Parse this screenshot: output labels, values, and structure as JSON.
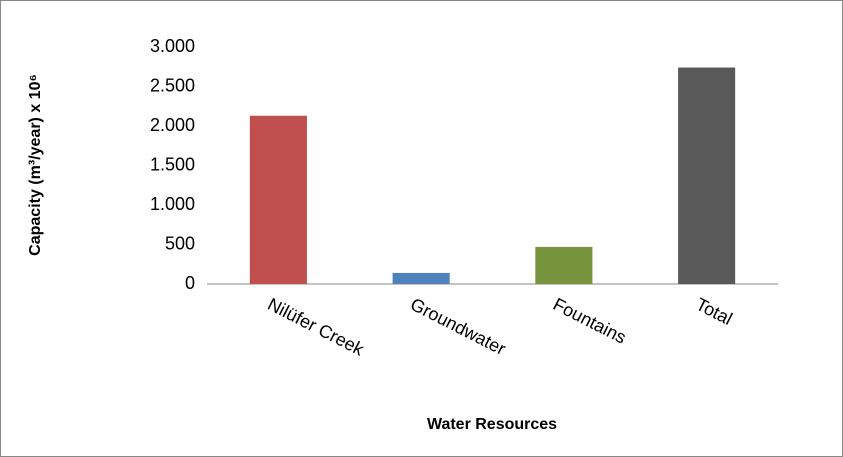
{
  "chart_data": {
    "type": "bar",
    "x_label": "Water Resources",
    "y_label": "Capacity (m³/year) x 10⁶",
    "categories": [
      "Nilüfer Creek",
      "Groundwater",
      "Fountains",
      "Total"
    ],
    "values": [
      2130,
      140,
      470,
      2740
    ],
    "colors": [
      "#c0504d",
      "#4f81bd",
      "#77933c",
      "#595959"
    ],
    "ylim": [
      0,
      3000
    ],
    "yticks": [
      0,
      500,
      {
        "value": 1000,
        "label": "1.000"
      },
      {
        "value": 1500,
        "label": "1.500"
      },
      {
        "value": 2000,
        "label": "2.000"
      },
      {
        "value": 2500,
        "label": "2.500"
      },
      {
        "value": 3000,
        "label": "3.000"
      }
    ],
    "grid": false
  }
}
